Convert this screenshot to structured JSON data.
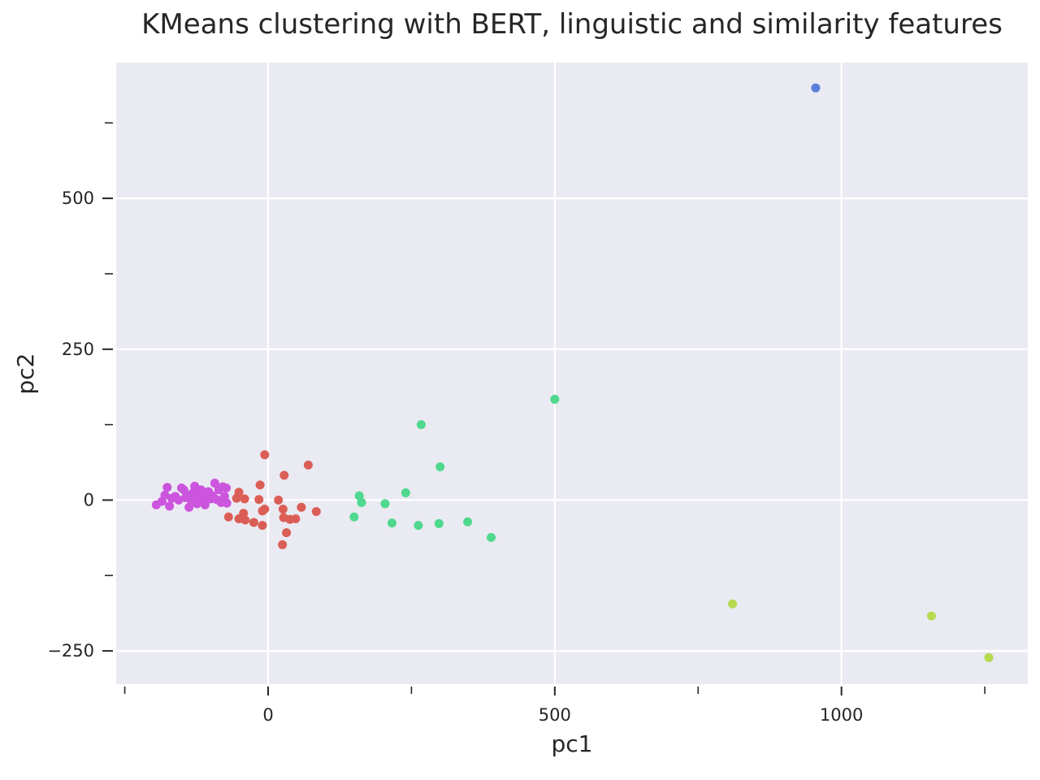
{
  "chart_data": {
    "type": "scatter",
    "title": "KMeans clustering with BERT, linguistic and similarity features",
    "xlabel": "pc1",
    "ylabel": "pc2",
    "xlim": [
      -265,
      1325
    ],
    "ylim": [
      -305,
      725
    ],
    "x_major_ticks": [
      0,
      500,
      1000
    ],
    "x_minor_ticks": [
      -250,
      250,
      750,
      1250
    ],
    "y_major_ticks": [
      -250,
      0,
      250,
      500
    ],
    "y_minor_ticks": [
      -125,
      125,
      375,
      625
    ],
    "x_tick_labels": [
      "0",
      "500",
      "1000"
    ],
    "y_tick_labels": [
      "−250",
      "0",
      "250",
      "500"
    ],
    "grid": true,
    "background": "#EAEAF2",
    "legend": "none",
    "series": [
      {
        "color": "#5B7FD9",
        "points": [
          [
            955,
            683
          ]
        ]
      },
      {
        "color": "#B5DA50",
        "points": [
          [
            810,
            -172
          ],
          [
            1157,
            -192
          ],
          [
            1257,
            -261
          ]
        ]
      },
      {
        "color": "#4FD88E",
        "points": [
          [
            500,
            167
          ],
          [
            267,
            125
          ],
          [
            300,
            55
          ],
          [
            159,
            7
          ],
          [
            163,
            -4
          ],
          [
            240,
            12
          ],
          [
            204,
            -6
          ],
          [
            150,
            -28
          ],
          [
            216,
            -38
          ],
          [
            262,
            -42
          ],
          [
            298,
            -39
          ],
          [
            348,
            -36
          ],
          [
            389,
            -62
          ]
        ]
      },
      {
        "color": "#DB5E56",
        "points": [
          [
            -6,
            75
          ],
          [
            70,
            58
          ],
          [
            28,
            41
          ],
          [
            -14,
            25
          ],
          [
            -51,
            13
          ],
          [
            -55,
            3
          ],
          [
            -41,
            2
          ],
          [
            -16,
            1
          ],
          [
            18,
            0
          ],
          [
            -6,
            -15
          ],
          [
            -10,
            -18
          ],
          [
            26,
            -15
          ],
          [
            58,
            -12
          ],
          [
            84,
            -19
          ],
          [
            -69,
            -28
          ],
          [
            -51,
            -31
          ],
          [
            -43,
            -22
          ],
          [
            -40,
            -33
          ],
          [
            -25,
            -37
          ],
          [
            27,
            -29
          ],
          [
            38,
            -32
          ],
          [
            48,
            -31
          ],
          [
            -10,
            -42
          ],
          [
            32,
            -54
          ],
          [
            25,
            -74
          ]
        ]
      },
      {
        "color": "#CB55DC",
        "points": [
          [
            -195,
            -8
          ],
          [
            -185,
            -2
          ],
          [
            -180,
            8
          ],
          [
            -176,
            21
          ],
          [
            -172,
            -10
          ],
          [
            -168,
            3
          ],
          [
            -162,
            6
          ],
          [
            -156,
            0
          ],
          [
            -151,
            20
          ],
          [
            -147,
            17
          ],
          [
            -141,
            8
          ],
          [
            -138,
            -12
          ],
          [
            -135,
            3
          ],
          [
            -131,
            12
          ],
          [
            -128,
            23
          ],
          [
            -124,
            -6
          ],
          [
            -121,
            0
          ],
          [
            -117,
            17
          ],
          [
            -114,
            4
          ],
          [
            -110,
            -8
          ],
          [
            -108,
            10
          ],
          [
            -104,
            14
          ],
          [
            -100,
            2
          ],
          [
            -97,
            7
          ],
          [
            -93,
            28
          ],
          [
            -90,
            1
          ],
          [
            -86,
            17
          ],
          [
            -82,
            -4
          ],
          [
            -79,
            22
          ],
          [
            -76,
            6
          ],
          [
            -73,
            20
          ],
          [
            -72,
            -5
          ],
          [
            -144,
            4
          ],
          [
            -125,
            8
          ],
          [
            -133,
            -4
          ],
          [
            -112,
            -2
          ]
        ]
      }
    ]
  }
}
